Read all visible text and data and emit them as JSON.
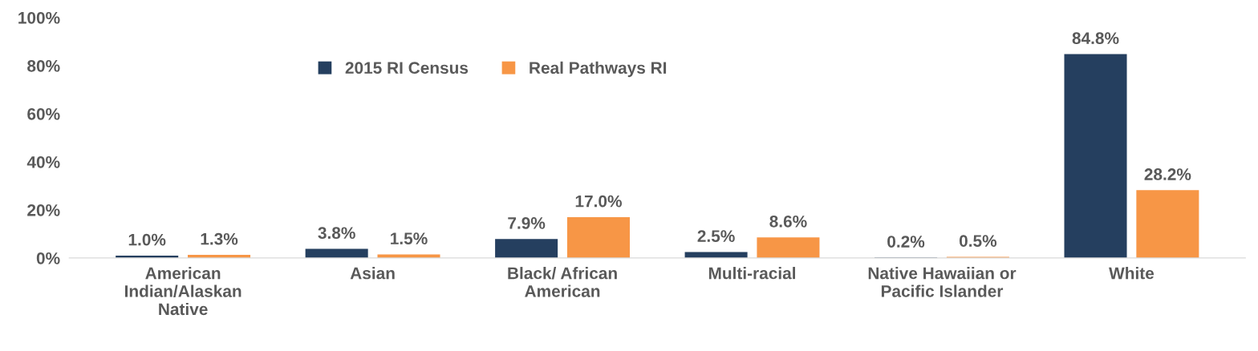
{
  "chart_data": {
    "type": "bar",
    "categories": [
      "American\nIndian/Alaskan\nNative",
      "Asian",
      "Black/ African\nAmerican",
      "Multi-racial",
      "Native Hawaiian or\nPacific Islander",
      "White"
    ],
    "series": [
      {
        "name": "2015 RI Census",
        "color": "#253f5f",
        "values": [
          1.0,
          3.8,
          7.9,
          2.5,
          0.2,
          84.8
        ],
        "value_labels": [
          "1.0%",
          "3.8%",
          "7.9%",
          "2.5%",
          "0.2%",
          "84.8%"
        ]
      },
      {
        "name": "Real Pathways RI",
        "color": "#f79646",
        "values": [
          1.3,
          1.5,
          17.0,
          8.6,
          0.5,
          28.2
        ],
        "value_labels": [
          "1.3%",
          "1.5%",
          "17.0%",
          "8.6%",
          "0.5%",
          "28.2%"
        ]
      }
    ],
    "ylim": [
      0,
      100
    ],
    "yticks": [
      {
        "value": 0,
        "label": "0%"
      },
      {
        "value": 20,
        "label": "20%"
      },
      {
        "value": 40,
        "label": "40%"
      },
      {
        "value": 60,
        "label": "60%"
      },
      {
        "value": 80,
        "label": "80%"
      },
      {
        "value": 100,
        "label": "100%"
      }
    ],
    "grid": false,
    "legend": "top"
  }
}
